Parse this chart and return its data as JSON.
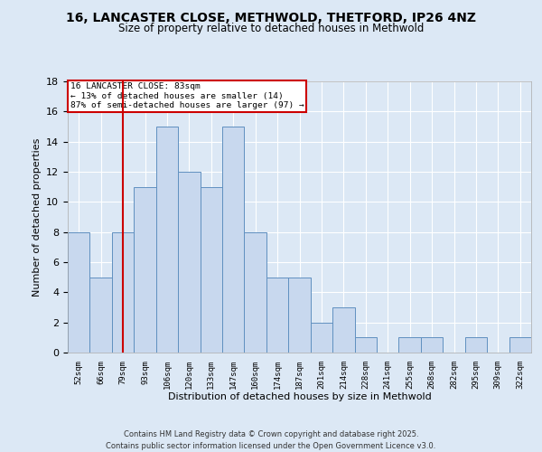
{
  "title1": "16, LANCASTER CLOSE, METHWOLD, THETFORD, IP26 4NZ",
  "title2": "Size of property relative to detached houses in Methwold",
  "xlabel": "Distribution of detached houses by size in Methwold",
  "ylabel": "Number of detached properties",
  "categories": [
    "52sqm",
    "66sqm",
    "79sqm",
    "93sqm",
    "106sqm",
    "120sqm",
    "133sqm",
    "147sqm",
    "160sqm",
    "174sqm",
    "187sqm",
    "201sqm",
    "214sqm",
    "228sqm",
    "241sqm",
    "255sqm",
    "268sqm",
    "282sqm",
    "295sqm",
    "309sqm",
    "322sqm"
  ],
  "values": [
    8,
    5,
    8,
    11,
    15,
    12,
    11,
    15,
    8,
    5,
    5,
    2,
    3,
    1,
    0,
    1,
    1,
    0,
    1,
    0,
    1
  ],
  "bar_color": "#c8d8ee",
  "bar_edge_color": "#6090c0",
  "red_line_index": 2,
  "red_line_color": "#cc0000",
  "annotation_title": "16 LANCASTER CLOSE: 83sqm",
  "annotation_line1": "← 13% of detached houses are smaller (14)",
  "annotation_line2": "87% of semi-detached houses are larger (97) →",
  "annotation_box_color": "#cc0000",
  "ylim": [
    0,
    18
  ],
  "yticks": [
    0,
    2,
    4,
    6,
    8,
    10,
    12,
    14,
    16,
    18
  ],
  "footer1": "Contains HM Land Registry data © Crown copyright and database right 2025.",
  "footer2": "Contains public sector information licensed under the Open Government Licence v3.0.",
  "bg_color": "#dce8f5",
  "plot_bg_color": "#dce8f5"
}
